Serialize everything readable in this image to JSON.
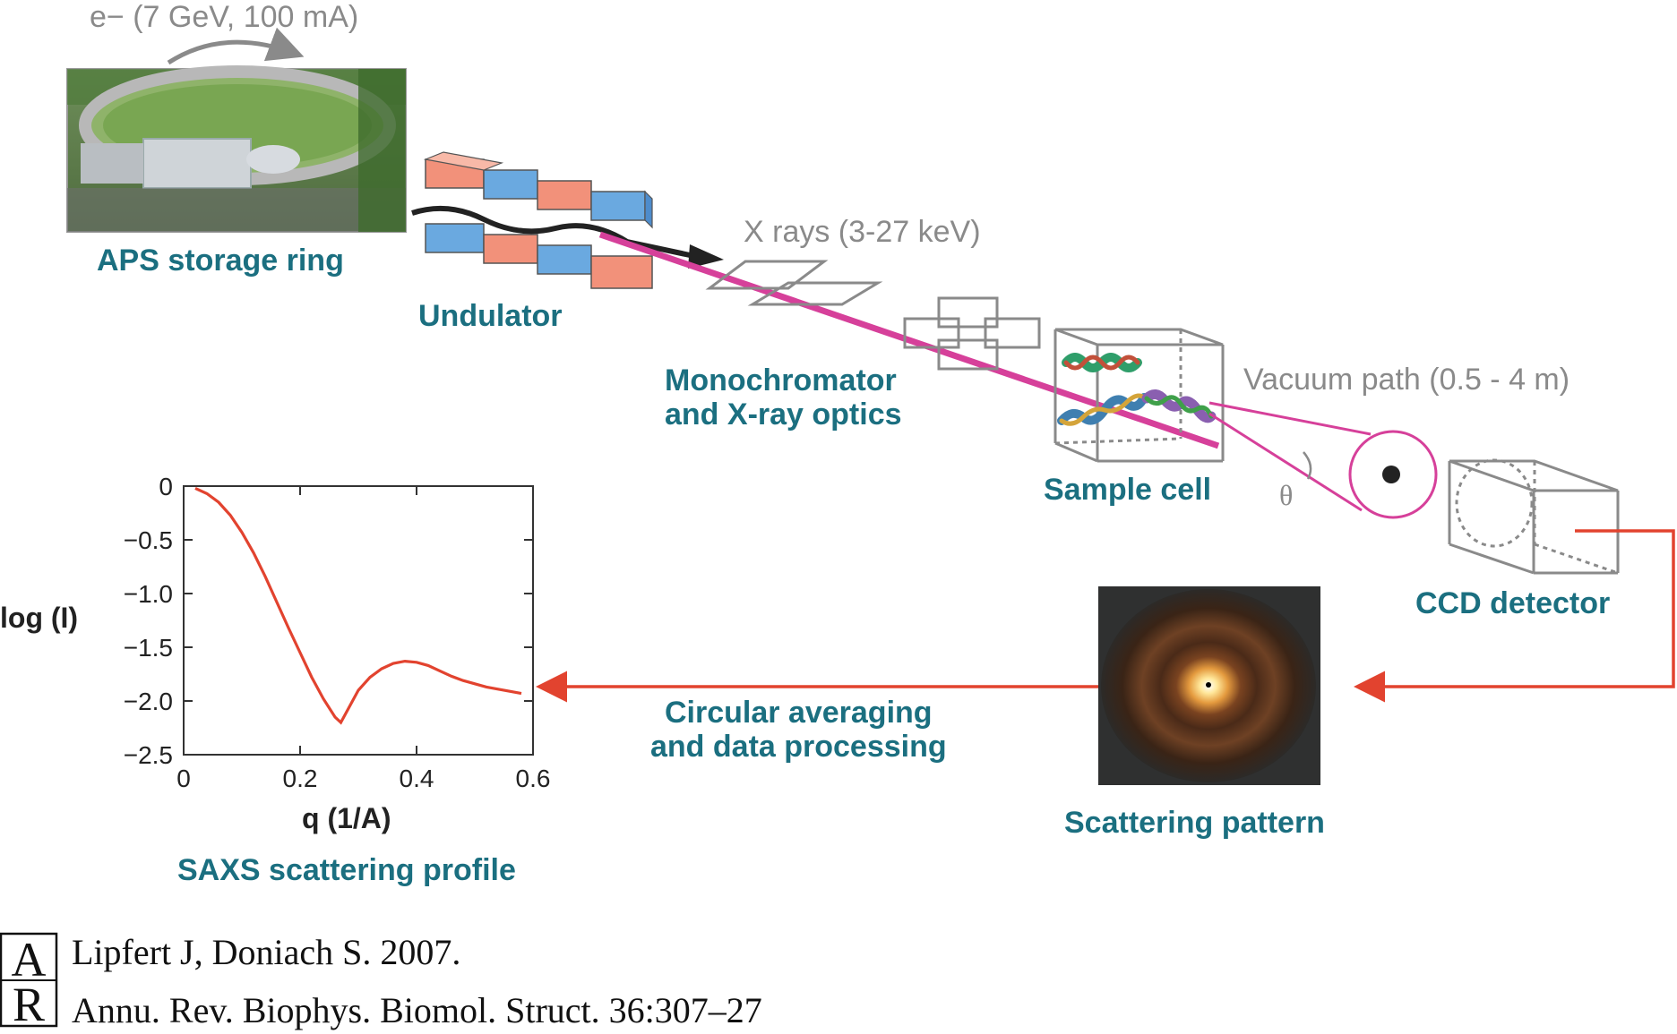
{
  "electron_label": "e− (7 GeV, 100 mA)",
  "xray_label": "X rays (3-27 keV)",
  "vacuum_label": "Vacuum path (0.5 - 4 m)",
  "theta_label": "θ",
  "components": {
    "storage_ring": "APS storage ring",
    "undulator": "Undulator",
    "monochromator_line1": "Monochromator",
    "monochromator_line2": "and X-ray optics",
    "sample_cell": "Sample cell",
    "ccd_detector": "CCD detector",
    "scattering_pattern": "Scattering pattern",
    "processing_line1": "Circular averaging",
    "processing_line2": "and data processing",
    "profile_title": "SAXS scattering profile"
  },
  "colors": {
    "label_teal": "#1b6f80",
    "beam_magenta": "#d6409a",
    "arrow_red": "#e2432f",
    "magnet_red": "#f2917a",
    "magnet_blue": "#6aa9e0",
    "outline_gray": "#8a8a8a"
  },
  "chart_data": {
    "type": "line",
    "xlabel": "q (1/A)",
    "ylabel": "log (I)",
    "xlim": [
      0,
      0.6
    ],
    "ylim": [
      -2.5,
      0
    ],
    "xticks": [
      "0",
      "0.2",
      "0.4",
      "0.6"
    ],
    "yticks": [
      "0",
      "−0.5",
      "−1.0",
      "−1.5",
      "−2.0",
      "−2.5"
    ],
    "series": [
      {
        "x": [
          0.02,
          0.04,
          0.06,
          0.08,
          0.1,
          0.12,
          0.14,
          0.16,
          0.18,
          0.2,
          0.22,
          0.24,
          0.26,
          0.27,
          0.28,
          0.3,
          0.32,
          0.34,
          0.36,
          0.38,
          0.4,
          0.42,
          0.44,
          0.46,
          0.48,
          0.5,
          0.52,
          0.54,
          0.56,
          0.58
        ],
        "y": [
          -0.02,
          -0.07,
          -0.15,
          -0.27,
          -0.43,
          -0.62,
          -0.84,
          -1.08,
          -1.32,
          -1.55,
          -1.78,
          -1.98,
          -2.15,
          -2.2,
          -2.1,
          -1.9,
          -1.78,
          -1.7,
          -1.65,
          -1.63,
          -1.64,
          -1.67,
          -1.72,
          -1.77,
          -1.81,
          -1.84,
          -1.87,
          -1.89,
          -1.91,
          -1.93
        ]
      }
    ]
  },
  "citation": {
    "logo": "AR",
    "line1": "Lipfert J, Doniach S. 2007.",
    "line2": "Annu. Rev. Biophys. Biomol. Struct. 36:307–27"
  }
}
